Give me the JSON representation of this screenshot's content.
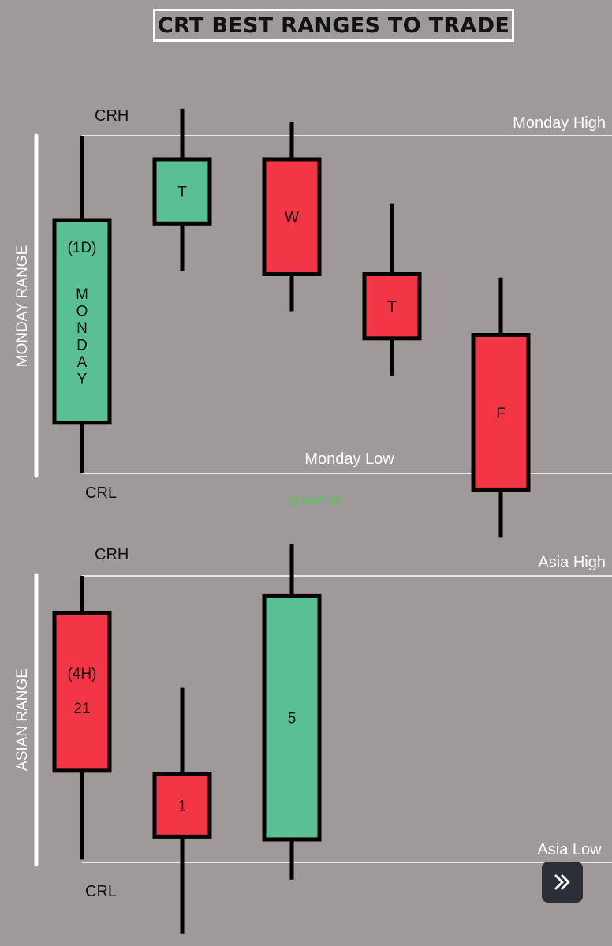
{
  "title": "CRT BEST RANGES TO TRADE",
  "watermark": "QUANTUM",
  "colors": {
    "background": "#9f999a",
    "bull": "#5bbf94",
    "bear": "#f23645",
    "line": "#ffffff",
    "outline": "#000000",
    "watermark": "#3fd13f"
  },
  "chart_data": [
    {
      "type": "candlestick",
      "range_label": "MONDAY RANGE",
      "high_line_label": "Monday High",
      "low_line_label": "Monday Low",
      "crh_label": "CRH",
      "crl_label": "CRL",
      "candles": [
        {
          "id": "monday",
          "labels": [
            "(1D)",
            "MONDAY"
          ],
          "vertical_text": true,
          "direction": "bull",
          "open": 15,
          "close": 75,
          "high": 100,
          "low": 0
        },
        {
          "id": "tuesday",
          "labels": [
            "T"
          ],
          "direction": "bull",
          "open": 74,
          "close": 93,
          "high": 108,
          "low": 60
        },
        {
          "id": "wednesday",
          "labels": [
            "W"
          ],
          "direction": "bear",
          "open": 93,
          "close": 59,
          "high": 104,
          "low": 48
        },
        {
          "id": "thursday",
          "labels": [
            "T"
          ],
          "direction": "bear",
          "open": 59,
          "close": 40,
          "high": 80,
          "low": 29
        },
        {
          "id": "friday",
          "labels": [
            "F"
          ],
          "direction": "bear",
          "open": 41,
          "close": -5,
          "high": 58,
          "low": -19
        }
      ]
    },
    {
      "type": "candlestick",
      "range_label": "ASIAN RANGE",
      "high_line_label": "Asia High",
      "low_line_label": "Asia Low",
      "crh_label": "CRH",
      "crl_label": "CRL",
      "candles": [
        {
          "id": "h21",
          "labels": [
            "(4H)",
            "21"
          ],
          "direction": "bear",
          "open": 87,
          "close": 32,
          "high": 100,
          "low": 1
        },
        {
          "id": "h1",
          "labels": [
            "1"
          ],
          "direction": "bear",
          "open": 31,
          "close": 9,
          "high": 61,
          "low": -25
        },
        {
          "id": "h5",
          "labels": [
            "5"
          ],
          "direction": "bull",
          "open": 8,
          "close": 93,
          "high": 111,
          "low": -6
        }
      ]
    }
  ]
}
